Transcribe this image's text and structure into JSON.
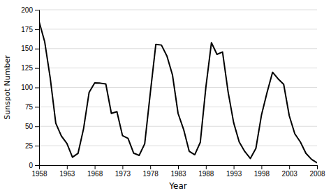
{
  "chart_data": {
    "type": "line",
    "xlabel": "Year",
    "ylabel": "Sunspot Number",
    "x": [
      1958,
      1959,
      1960,
      1961,
      1962,
      1963,
      1964,
      1965,
      1966,
      1967,
      1968,
      1969,
      1970,
      1971,
      1972,
      1973,
      1974,
      1975,
      1976,
      1977,
      1978,
      1979,
      1980,
      1981,
      1982,
      1983,
      1984,
      1985,
      1986,
      1987,
      1988,
      1989,
      1990,
      1991,
      1992,
      1993,
      1994,
      1995,
      1996,
      1997,
      1998,
      1999,
      2000,
      2001,
      2002,
      2003,
      2004,
      2005,
      2006,
      2007,
      2008
    ],
    "values": [
      184.8,
      159.0,
      112.3,
      53.9,
      37.6,
      27.9,
      10.2,
      15.1,
      47.0,
      93.8,
      105.9,
      105.5,
      104.5,
      66.6,
      68.9,
      38.0,
      34.5,
      15.5,
      12.6,
      27.5,
      92.5,
      155.4,
      154.6,
      140.4,
      115.9,
      66.6,
      45.9,
      17.9,
      13.4,
      29.4,
      100.2,
      157.6,
      142.6,
      145.7,
      94.3,
      54.6,
      29.9,
      17.5,
      8.6,
      21.5,
      64.3,
      93.3,
      119.6,
      111.0,
      104.0,
      63.7,
      40.4,
      29.8,
      15.2,
      7.5,
      2.9
    ],
    "color": "#000000",
    "xlim": [
      1958,
      2008
    ],
    "ylim": [
      0,
      200
    ],
    "xticks": [
      1958,
      1963,
      1968,
      1973,
      1978,
      1983,
      1988,
      1993,
      1998,
      2003,
      2008
    ],
    "yticks": [
      0,
      25,
      50,
      75,
      100,
      125,
      150,
      175,
      200
    ],
    "grid": true
  }
}
